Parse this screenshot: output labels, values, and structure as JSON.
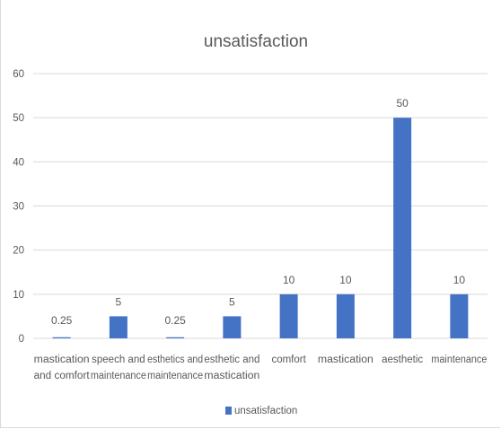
{
  "chart_data": {
    "type": "bar",
    "title": "unsatisfaction",
    "categories": [
      [
        "mastication",
        "and comfort"
      ],
      [
        "speech and",
        "maintenance"
      ],
      [
        "esthetics and",
        "maintenance"
      ],
      [
        "esthetic and",
        "mastication"
      ],
      [
        "comfort"
      ],
      [
        "mastication"
      ],
      [
        "aesthetic"
      ],
      [
        "maintenance"
      ]
    ],
    "series": [
      {
        "name": "unsatisfaction",
        "values": [
          0.25,
          5,
          0.25,
          5,
          10,
          10,
          50,
          10
        ],
        "data_labels": [
          "0.25",
          "5",
          "0.25",
          "5",
          "10",
          "10",
          "50",
          "10"
        ],
        "color": "#4472c4"
      }
    ],
    "ylim": [
      0,
      60
    ],
    "yticks": [
      0,
      10,
      20,
      30,
      40,
      50,
      60
    ],
    "grid": true,
    "gridline_color": "#d9d9d9",
    "legend_position": "bottom",
    "xlabel": "",
    "ylabel": ""
  }
}
